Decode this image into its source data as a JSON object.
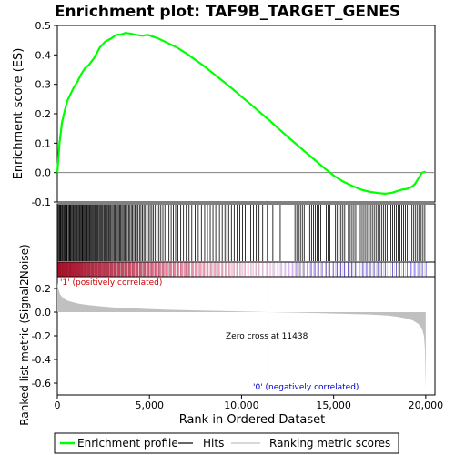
{
  "chart_data": {
    "type": "line",
    "title": "Enrichment plot: TAF9B_TARGET_GENES",
    "es_panel": {
      "ylabel": "Enrichment score (ES)",
      "ylim": [
        -0.1,
        0.5
      ],
      "yticks": [
        "0.5",
        "0.4",
        "0.3",
        "0.2",
        "0.1",
        "0.0",
        "-0.1"
      ],
      "ytick_values": [
        0.5,
        0.4,
        0.3,
        0.2,
        0.1,
        0.0,
        -0.1
      ],
      "series": [
        {
          "name": "Enrichment profile",
          "color": "#00ff00",
          "x": [
            0,
            120,
            250,
            400,
            550,
            700,
            900,
            1100,
            1300,
            1500,
            1700,
            2000,
            2300,
            2600,
            2900,
            3200,
            3500,
            3700,
            4000,
            4300,
            4600,
            4900,
            5200,
            5500,
            6000,
            6500,
            7000,
            7500,
            8000,
            8500,
            9000,
            9500,
            10000,
            10500,
            11000,
            11500,
            12000,
            12500,
            13000,
            13500,
            14000,
            14500,
            15000,
            15500,
            16000,
            16500,
            17000,
            17500,
            17800,
            18000,
            18200,
            18500,
            18700,
            19000,
            19200,
            19400,
            19600,
            19800,
            20000
          ],
          "y": [
            0.0,
            0.1,
            0.17,
            0.21,
            0.245,
            0.265,
            0.29,
            0.31,
            0.335,
            0.355,
            0.365,
            0.39,
            0.425,
            0.445,
            0.455,
            0.468,
            0.47,
            0.475,
            0.472,
            0.468,
            0.465,
            0.468,
            0.462,
            0.455,
            0.44,
            0.425,
            0.405,
            0.383,
            0.36,
            0.335,
            0.31,
            0.285,
            0.258,
            0.232,
            0.205,
            0.178,
            0.15,
            0.122,
            0.095,
            0.068,
            0.042,
            0.015,
            -0.01,
            -0.03,
            -0.045,
            -0.058,
            -0.066,
            -0.07,
            -0.072,
            -0.07,
            -0.068,
            -0.062,
            -0.058,
            -0.055,
            -0.05,
            -0.04,
            -0.02,
            0.0,
            0.003
          ]
        }
      ]
    },
    "hits_legend": "Hits",
    "metric_panel": {
      "ylabel": "Ranked list metric (Signal2Noise)",
      "ylim": [
        -0.7,
        0.3
      ],
      "yticks": [
        "0.2",
        "0.0",
        "-0.2",
        "-0.4",
        "-0.6"
      ],
      "ytick_values": [
        0.2,
        0.0,
        -0.2,
        -0.4,
        -0.6
      ],
      "series_name": "Ranking metric scores",
      "color": "#c0c0c0",
      "x": [
        0,
        50,
        150,
        300,
        500,
        800,
        1200,
        1700,
        2300,
        3000,
        4000,
        5000,
        6000,
        7000,
        8000,
        9000,
        10000,
        11000,
        11438,
        12000,
        13000,
        14000,
        15000,
        16000,
        17000,
        17500,
        18000,
        18500,
        19000,
        19300,
        19600,
        19800,
        19900,
        19950,
        20000
      ],
      "y": [
        0.25,
        0.2,
        0.15,
        0.12,
        0.1,
        0.085,
        0.07,
        0.06,
        0.05,
        0.04,
        0.032,
        0.026,
        0.02,
        0.016,
        0.012,
        0.009,
        0.006,
        0.002,
        0.0,
        -0.002,
        -0.005,
        -0.008,
        -0.012,
        -0.016,
        -0.02,
        -0.025,
        -0.03,
        -0.04,
        -0.055,
        -0.07,
        -0.1,
        -0.14,
        -0.2,
        -0.3,
        -0.65
      ],
      "zero_cross": 11438
    },
    "x_axis": {
      "xlabel": "Rank in Ordered Dataset",
      "xlim": [
        0,
        20500
      ],
      "xticks": [
        "0",
        "5,000",
        "10,000",
        "15,000",
        "20,000"
      ],
      "xtick_values": [
        0,
        5000,
        10000,
        15000,
        20000
      ]
    },
    "annotations": {
      "positive": "'1' (positively correlated)",
      "negative": "'0' (negatively correlated)",
      "zero_cross": "Zero cross at 11438"
    },
    "colors": {
      "profile": "#00ff00",
      "hits": "#000000",
      "metric": "#c0c0c0",
      "positive_text": "#cc0000",
      "negative_text": "#0000cc",
      "grid_zero": "#808080"
    },
    "hit_ranks": [
      20,
      60,
      110,
      150,
      190,
      240,
      280,
      330,
      370,
      410,
      450,
      500,
      540,
      600,
      650,
      690,
      730,
      780,
      830,
      870,
      920,
      970,
      1010,
      1060,
      1100,
      1150,
      1200,
      1240,
      1290,
      1340,
      1380,
      1430,
      1480,
      1530,
      1580,
      1620,
      1670,
      1720,
      1760,
      1810,
      1860,
      1910,
      1960,
      2010,
      2050,
      2100,
      2150,
      2200,
      2260,
      2310,
      2360,
      2410,
      2460,
      2520,
      2570,
      2620,
      2680,
      2730,
      2790,
      2850,
      2900,
      2960,
      3020,
      3080,
      3140,
      3200,
      3260,
      3320,
      3380,
      3440,
      3500,
      3560,
      3620,
      3680,
      3740,
      3800,
      3870,
      3940,
      4010,
      4080,
      4150,
      4220,
      4300,
      4380,
      4460,
      4540,
      4620,
      4700,
      4780,
      4860,
      4950,
      5040,
      5130,
      5220,
      5320,
      5420,
      5520,
      5620,
      5730,
      5840,
      5950,
      6060,
      6180,
      6300,
      6420,
      6540,
      6700,
      6850,
      7000,
      7150,
      7300,
      7480,
      7650,
      7820,
      8000,
      8150,
      8300,
      8450,
      8600,
      8800,
      8950,
      9100,
      9200,
      9300,
      9450,
      9600,
      9750,
      9900,
      10050,
      10200,
      10350,
      10500,
      10650,
      10800,
      10950,
      11150,
      11400,
      11700,
      12100,
      12900,
      13000,
      13100,
      13200,
      13300,
      13400,
      13700,
      13800,
      13900,
      14000,
      14100,
      14200,
      14300,
      14600,
      14700,
      14800,
      15100,
      15200,
      15300,
      15400,
      15500,
      15600,
      15800,
      15900,
      16000,
      16100,
      16200,
      16400,
      16500,
      16600,
      16700,
      16800,
      16900,
      17000,
      17100,
      17200,
      17300,
      17400,
      17500,
      17600,
      17700,
      17800,
      17900,
      18000,
      18100,
      18200,
      18300,
      18400,
      18500,
      18600,
      18700,
      18800,
      18900,
      19000,
      19100,
      19250,
      19350,
      19450,
      19550,
      19650,
      19750,
      19850,
      19950
    ]
  },
  "legend": {
    "items": [
      "Enrichment profile",
      "Hits",
      "Ranking metric scores"
    ]
  }
}
